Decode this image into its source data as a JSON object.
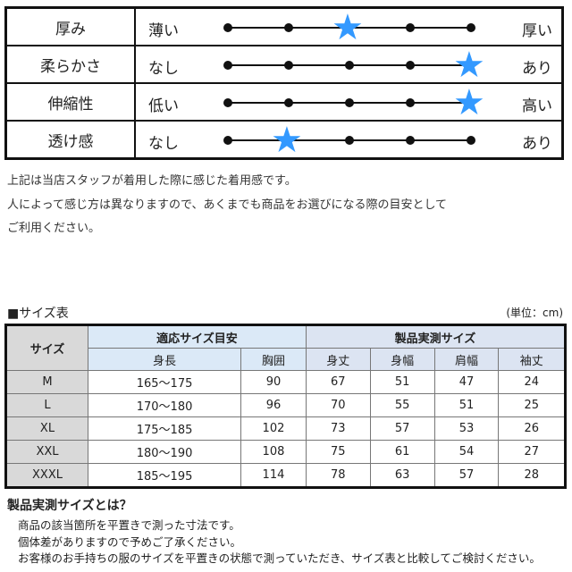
{
  "feel": [
    {
      "label": "厚み",
      "left": "薄い",
      "right": "厚い",
      "level": 3
    },
    {
      "label": "柔らかさ",
      "left": "なし",
      "right": "あり",
      "level": 5
    },
    {
      "label": "伸縮性",
      "left": "低い",
      "right": "高い",
      "level": 5
    },
    {
      "label": "透け感",
      "left": "なし",
      "right": "あり",
      "level": 2
    }
  ],
  "star_color": "#3399ff",
  "notes": [
    "上記は当店スタッフが着用した際に感じた着用感です。",
    "人によって感じ方は異なりますので、あくまでも商品をお選びになる際の目安として",
    "ご利用ください。"
  ],
  "size_title": "■サイズ表",
  "unit": "(単位：cm)",
  "size_table": {
    "size_header": "サイズ",
    "group1": "適応サイズ目安",
    "group2": "製品実測サイズ",
    "columns": [
      "身長",
      "胸囲",
      "身丈",
      "身幅",
      "肩幅",
      "袖丈"
    ],
    "rows": [
      [
        "M",
        "165～175",
        "90",
        "67",
        "51",
        "47",
        "24"
      ],
      [
        "L",
        "170～180",
        "96",
        "70",
        "55",
        "51",
        "25"
      ],
      [
        "XL",
        "175～185",
        "102",
        "73",
        "57",
        "53",
        "26"
      ],
      [
        "XXL",
        "180～190",
        "108",
        "75",
        "61",
        "54",
        "27"
      ],
      [
        "XXXL",
        "185～195",
        "114",
        "78",
        "63",
        "57",
        "28"
      ]
    ]
  },
  "explain": {
    "title": "製品実測サイズとは？",
    "lines": [
      "商品の該当箇所を平置きで測った寸法です。",
      "個体差がありますので予めご了承ください。",
      "お客様のお手持ちの服のサイズを平置きの状態で測っていただき、サイズ表と比較してご検討ください。"
    ]
  }
}
